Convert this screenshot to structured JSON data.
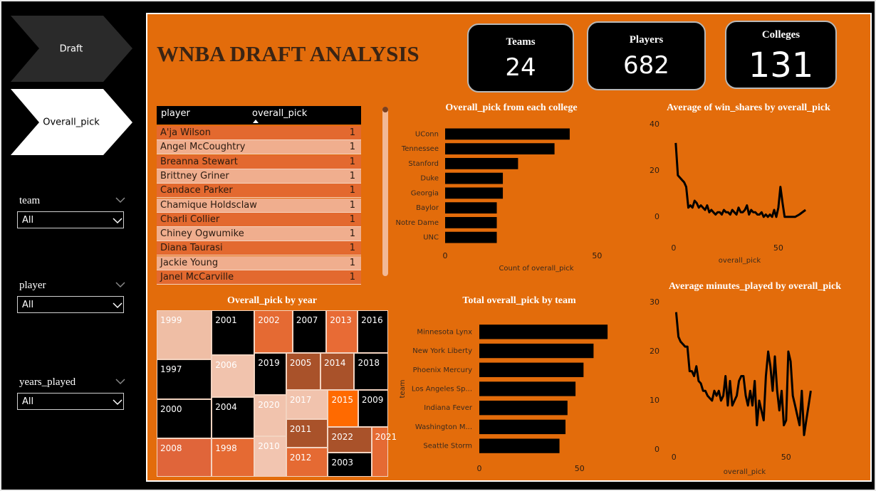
{
  "nav": [
    "Draft",
    "Overall_pick"
  ],
  "filters": [
    {
      "label": "team",
      "value": "All"
    },
    {
      "label": "player",
      "value": "All"
    },
    {
      "label": "years_played",
      "value": "All"
    }
  ],
  "title": "WNBA DRAFT ANALYSIS",
  "kpis": [
    {
      "label": "Teams",
      "value": 24
    },
    {
      "label": "Players",
      "value": 682
    },
    {
      "label": "Colleges",
      "value": 131
    }
  ],
  "table": {
    "columns": [
      "player",
      "overall_pick"
    ],
    "rows": [
      [
        "A'ja Wilson",
        1
      ],
      [
        "Angel McCoughtry",
        1
      ],
      [
        "Breanna Stewart",
        1
      ],
      [
        "Brittney Griner",
        1
      ],
      [
        "Candace Parker",
        1
      ],
      [
        "Chamique Holdsclaw",
        1
      ],
      [
        "Charli Collier",
        1
      ],
      [
        "Chiney Ogwumike",
        1
      ],
      [
        "Diana Taurasi",
        1
      ],
      [
        "Jackie Young",
        1
      ],
      [
        "Janel McCarville",
        1
      ]
    ]
  },
  "chart_data": [
    {
      "type": "bar",
      "orientation": "horizontal",
      "title": "Overall_pick from each college",
      "categories": [
        "UConn",
        "Tennessee",
        "Stanford",
        "Duke",
        "Georgia",
        "Baylor",
        "Notre Dame",
        "UNC"
      ],
      "values": [
        41,
        36,
        24,
        19,
        19,
        17,
        17,
        17
      ],
      "color": "#000000",
      "xlim": [
        0,
        60
      ],
      "xticks": [
        0,
        50
      ],
      "xlabel": "Count of overall_pick"
    },
    {
      "type": "line",
      "title": "Average of win_shares by overall_pick",
      "x": [
        1,
        2,
        3,
        4,
        5,
        6,
        7,
        8,
        9,
        10,
        11,
        12,
        13,
        14,
        15,
        16,
        17,
        18,
        19,
        20,
        21,
        22,
        23,
        24,
        25,
        26,
        27,
        28,
        29,
        30,
        31,
        32,
        33,
        34,
        35,
        36,
        37,
        38,
        39,
        40,
        41,
        42,
        43,
        44,
        45,
        46,
        47,
        48,
        49,
        50,
        51,
        52,
        53,
        55,
        58,
        60,
        63
      ],
      "values": [
        32,
        18,
        17,
        16,
        15,
        13,
        4,
        5,
        4,
        7,
        6,
        4,
        5,
        4,
        3,
        5,
        2,
        3,
        2,
        1,
        2,
        2,
        1,
        3,
        2,
        2,
        1,
        3,
        2,
        1,
        4,
        2,
        2,
        3,
        5,
        1,
        3,
        2,
        2,
        1,
        1,
        2,
        0,
        1,
        0,
        1,
        0,
        3,
        0,
        4,
        13,
        6,
        0,
        0,
        0,
        1,
        3
      ],
      "color": "#000000",
      "xlim": [
        -2,
        65
      ],
      "ylim": [
        -5,
        42
      ],
      "xticks": [
        0,
        50
      ],
      "yticks": [
        0,
        20,
        40
      ],
      "xlabel": "overall_pick"
    },
    {
      "type": "treemap",
      "title": "Overall_pick by year",
      "categories": [
        "1999",
        "1997",
        "2000",
        "2008",
        "2001",
        "2006",
        "2004",
        "1998",
        "2002",
        "2007",
        "2013",
        "2016",
        "2019",
        "2020",
        "2010",
        "2005",
        "2014",
        "2018",
        "2017",
        "2011",
        "2012",
        "2015",
        "2009",
        "2022",
        "2003",
        "2021"
      ],
      "values": [
        870,
        700,
        680,
        680,
        610,
        580,
        560,
        525,
        525,
        465,
        430,
        420,
        420,
        420,
        415,
        400,
        395,
        395,
        390,
        385,
        385,
        360,
        357,
        357,
        335,
        265
      ],
      "colors": [
        "#efbea5",
        "#000000",
        "#000000",
        "#e0653a",
        "#000000",
        "#f1c3ad",
        "#000000",
        "#e56a33",
        "#e56a33",
        "#000000",
        "#e86b35",
        "#000000",
        "#000000",
        "#f1c3ad",
        "#f2c5b0",
        "#a9522a",
        "#a9522a",
        "#000000",
        "#f1c3ad",
        "#a9522a",
        "#e56a33",
        "#ff6a00",
        "#000000",
        "#a9522a",
        "#000000",
        "#e56a33"
      ]
    },
    {
      "type": "bar",
      "orientation": "horizontal",
      "title": "Total overall_pick by team",
      "categories": [
        "Minnesota Lynx",
        "New York Liberty",
        "Phoenix Mercury",
        "Los Angeles Sp...",
        "Indiana Fever",
        "Washington M...",
        "Seattle Storm"
      ],
      "values": [
        64,
        57,
        52,
        48,
        44,
        43,
        40
      ],
      "color": "#000000",
      "xlim": [
        0,
        70
      ],
      "xticks": [
        0,
        50
      ],
      "ylabel": "team"
    },
    {
      "type": "line",
      "title": "Average minutes_played by overall_pick",
      "x": [
        1,
        2,
        3,
        4,
        5,
        6,
        7,
        8,
        9,
        10,
        11,
        12,
        13,
        14,
        15,
        16,
        17,
        18,
        19,
        20,
        21,
        22,
        23,
        24,
        25,
        26,
        27,
        28,
        29,
        30,
        31,
        32,
        33,
        34,
        35,
        36,
        37,
        38,
        39,
        40,
        41,
        42,
        43,
        44,
        45,
        46,
        47,
        48,
        49,
        50,
        51,
        52,
        53,
        54,
        55,
        56,
        57,
        58,
        59,
        60,
        61
      ],
      "values": [
        28,
        23,
        22,
        21.5,
        21,
        21,
        16,
        16,
        15,
        17,
        14,
        13.5,
        12,
        12,
        11,
        10.5,
        10,
        12,
        11,
        12,
        10,
        11,
        15,
        9,
        14,
        9,
        10,
        11,
        14,
        15,
        15,
        11,
        9,
        12,
        9,
        14,
        5,
        10,
        8,
        6,
        15,
        20,
        17,
        12,
        19,
        12,
        8,
        12,
        5,
        6,
        20,
        18,
        11,
        9,
        7,
        5,
        12,
        3,
        6,
        9,
        12
      ],
      "color": "#000000",
      "xlim": [
        -2,
        65
      ],
      "ylim": [
        -1,
        31
      ],
      "xticks": [
        0,
        50
      ],
      "yticks": [
        0,
        10,
        20,
        30
      ],
      "xlabel": "overall_pick"
    }
  ]
}
